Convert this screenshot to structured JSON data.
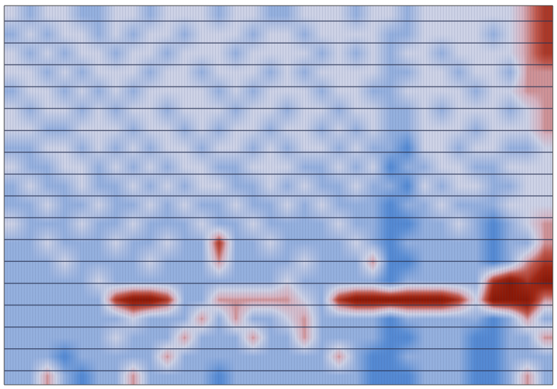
{
  "chart_data": {
    "type": "heatmap",
    "tick_labels": false,
    "zlim": [
      -3,
      3
    ],
    "z": [
      [
        0,
        -1,
        0,
        0,
        -1,
        -1,
        0,
        0,
        -1,
        0,
        0,
        0,
        -1,
        0,
        0,
        -1,
        -1,
        0,
        0,
        0,
        -1,
        0,
        0,
        -1,
        0,
        0,
        0,
        0,
        0,
        0,
        1,
        2
      ],
      [
        -1,
        0,
        -1,
        0,
        0,
        -1,
        0,
        -1,
        0,
        0,
        -1,
        0,
        0,
        0,
        -1,
        0,
        0,
        -1,
        0,
        0,
        0,
        0,
        -1,
        -1,
        0,
        0,
        0,
        0,
        -1,
        0,
        1,
        2
      ],
      [
        0,
        -1,
        0,
        -1,
        0,
        0,
        -1,
        0,
        0,
        -1,
        0,
        0,
        0,
        -1,
        0,
        0,
        0,
        0,
        -1,
        0,
        -1,
        0,
        -1,
        0,
        0,
        -1,
        0,
        0,
        0,
        0,
        1,
        2
      ],
      [
        0,
        0,
        -1,
        0,
        -1,
        0,
        0,
        0,
        -1,
        0,
        0,
        -1,
        0,
        0,
        0,
        -1,
        0,
        -1,
        0,
        0,
        0,
        0,
        -1,
        -1,
        0,
        0,
        -1,
        0,
        0,
        -1,
        1,
        1
      ],
      [
        -1,
        0,
        0,
        -1,
        0,
        -1,
        0,
        -1,
        0,
        0,
        0,
        0,
        -1,
        0,
        -1,
        0,
        0,
        0,
        -1,
        0,
        0,
        -1,
        -1,
        0,
        0,
        0,
        0,
        -1,
        0,
        0,
        1,
        1
      ],
      [
        0,
        -1,
        0,
        0,
        -1,
        0,
        -1,
        0,
        0,
        -1,
        0,
        0,
        0,
        -1,
        0,
        0,
        -1,
        0,
        0,
        -1,
        0,
        0,
        -1,
        -1,
        0,
        -1,
        0,
        0,
        0,
        -1,
        0,
        1
      ],
      [
        0,
        0,
        -1,
        -1,
        0,
        0,
        0,
        -1,
        0,
        0,
        -1,
        0,
        -1,
        0,
        0,
        -1,
        0,
        0,
        -1,
        0,
        -1,
        0,
        -1,
        -1,
        0,
        0,
        0,
        -1,
        0,
        0,
        0,
        1
      ],
      [
        -1,
        -1,
        0,
        0,
        -1,
        0,
        -1,
        0,
        -1,
        0,
        0,
        -1,
        0,
        0,
        -1,
        0,
        -1,
        0,
        0,
        -1,
        0,
        -1,
        -1,
        -2,
        0,
        0,
        -1,
        0,
        0,
        -1,
        -1,
        0
      ],
      [
        0,
        -1,
        -1,
        0,
        0,
        -1,
        0,
        -1,
        0,
        -1,
        0,
        0,
        -1,
        -1,
        0,
        0,
        0,
        -1,
        -1,
        0,
        -1,
        0,
        -2,
        -1,
        -1,
        0,
        0,
        -1,
        -1,
        0,
        0,
        0
      ],
      [
        -1,
        0,
        -1,
        -1,
        0,
        -1,
        -1,
        0,
        -1,
        0,
        -1,
        0,
        0,
        -1,
        -1,
        0,
        -1,
        0,
        -1,
        -1,
        0,
        -1,
        -1,
        -2,
        0,
        -1,
        0,
        0,
        -1,
        -1,
        0,
        0
      ],
      [
        -1,
        -1,
        0,
        -1,
        -1,
        0,
        -1,
        -1,
        0,
        -1,
        0,
        -1,
        -1,
        0,
        -1,
        -1,
        0,
        -1,
        0,
        -1,
        -1,
        -1,
        -2,
        -1,
        -1,
        0,
        -1,
        -1,
        -1,
        0,
        0,
        0
      ],
      [
        0,
        -1,
        -1,
        -1,
        0,
        -1,
        -1,
        0,
        -1,
        -1,
        -1,
        0,
        -1,
        -1,
        0,
        -1,
        -1,
        -1,
        -1,
        0,
        -1,
        -1,
        -2,
        -2,
        -1,
        -1,
        0,
        -1,
        -2,
        -1,
        0,
        1
      ],
      [
        -1,
        -1,
        0,
        -1,
        -1,
        -1,
        0,
        -1,
        -1,
        0,
        -1,
        -1,
        2,
        -1,
        -1,
        0,
        -1,
        -1,
        -1,
        -1,
        0,
        -1,
        -2,
        -1,
        -1,
        -1,
        -1,
        -1,
        -2,
        -1,
        -1,
        1
      ],
      [
        -1,
        -1,
        -1,
        0,
        -1,
        -1,
        -1,
        -1,
        0,
        -1,
        -1,
        -1,
        1,
        -1,
        -1,
        -1,
        -1,
        0,
        -1,
        -1,
        -1,
        1,
        -2,
        -2,
        -1,
        -1,
        -1,
        -1,
        -2,
        -1,
        1,
        2
      ],
      [
        -1,
        -1,
        -1,
        -1,
        -1,
        0,
        -1,
        -1,
        -1,
        -1,
        -1,
        -1,
        -1,
        -1,
        -1,
        -1,
        0,
        -1,
        -1,
        -1,
        -1,
        -1,
        -2,
        -1,
        -1,
        -1,
        -1,
        -1,
        2,
        3,
        2,
        3
      ],
      [
        -1,
        -1,
        -1,
        -1,
        -1,
        -1,
        2,
        3,
        3,
        2,
        -1,
        -1,
        1,
        1,
        1,
        1,
        1,
        0,
        -1,
        2,
        3,
        3,
        3,
        3,
        3,
        3,
        2,
        0,
        3,
        3,
        3,
        1
      ],
      [
        -1,
        -1,
        -1,
        -1,
        -1,
        -1,
        -1,
        0,
        -1,
        -1,
        -1,
        1,
        -1,
        1,
        -1,
        -1,
        0,
        1,
        -1,
        -1,
        -1,
        -1,
        -2,
        -1,
        -1,
        -1,
        -1,
        -1,
        -2,
        -1,
        1,
        -1
      ],
      [
        -1,
        -1,
        -1,
        -1,
        -1,
        -1,
        0,
        -1,
        -1,
        -1,
        1,
        -1,
        -1,
        -1,
        1,
        -1,
        -1,
        1,
        -1,
        -1,
        -1,
        -1,
        -2,
        -2,
        -1,
        -1,
        -1,
        -2,
        -2,
        -1,
        -1,
        1
      ],
      [
        -1,
        -1,
        -1,
        -2,
        -1,
        -1,
        -1,
        -1,
        -1,
        1,
        -1,
        -1,
        -1,
        -1,
        -1,
        -1,
        -1,
        -1,
        -1,
        1,
        -1,
        -2,
        -2,
        -1,
        -1,
        -1,
        -1,
        -2,
        -2,
        -1,
        -1,
        -1
      ],
      [
        -1,
        -1,
        1,
        -1,
        -2,
        -1,
        -1,
        1,
        -1,
        -1,
        -1,
        -1,
        -2,
        -1,
        -1,
        -1,
        -1,
        -1,
        -1,
        -1,
        -1,
        -2,
        -2,
        -2,
        -1,
        -1,
        -1,
        -2,
        -2,
        -1,
        1,
        -1
      ]
    ]
  }
}
